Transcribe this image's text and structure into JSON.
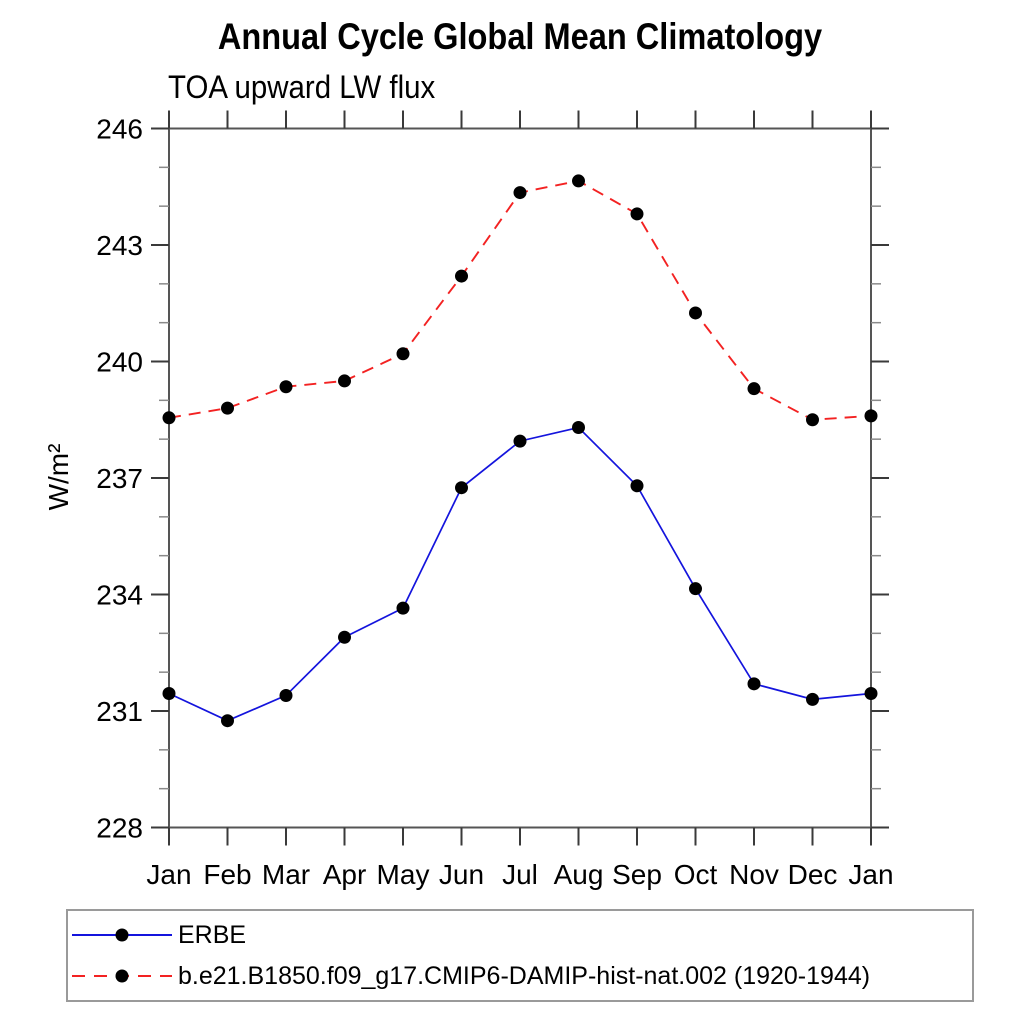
{
  "chart": {
    "title": "Annual Cycle Global Mean Climatology",
    "subtitle": "TOA upward LW flux",
    "y_axis_label": "W/m²"
  },
  "chart_data": {
    "type": "line",
    "title": "Annual Cycle Global Mean Climatology",
    "subtitle": "TOA upward LW flux",
    "xlabel": "",
    "ylabel": "W/m²",
    "x_categories": [
      "Jan",
      "Feb",
      "Mar",
      "Apr",
      "May",
      "Jun",
      "Jul",
      "Aug",
      "Sep",
      "Oct",
      "Nov",
      "Dec",
      "Jan"
    ],
    "ylim": [
      228,
      246
    ],
    "yticks_major": [
      228,
      231,
      234,
      237,
      240,
      243,
      246
    ],
    "yticks_minor_interval": 1,
    "grid": false,
    "legend_position": "bottom-left-box",
    "axis_color": "#555555",
    "tick_label_color": "#000000",
    "series": [
      {
        "name": "ERBE",
        "color": "#1414dd",
        "line_style": "solid",
        "marker": "filled-circle",
        "marker_color": "#000000",
        "values": [
          231.45,
          230.75,
          231.4,
          232.9,
          233.65,
          236.75,
          237.95,
          238.3,
          236.8,
          234.15,
          231.7,
          231.3,
          231.45
        ]
      },
      {
        "name": "b.e21.B1850.f09_g17.CMIP6-DAMIP-hist-nat.002 (1920-1944)",
        "color": "#f32222",
        "line_style": "dashed",
        "marker": "filled-circle",
        "marker_color": "#000000",
        "values": [
          238.55,
          238.8,
          239.35,
          239.5,
          240.2,
          242.2,
          244.35,
          244.65,
          243.8,
          241.25,
          239.3,
          238.5,
          238.6
        ]
      }
    ]
  }
}
